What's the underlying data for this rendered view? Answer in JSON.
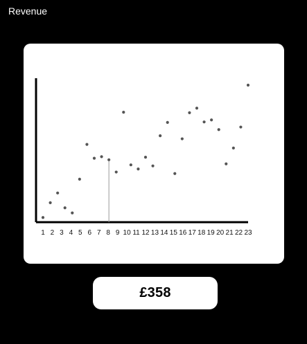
{
  "header": {
    "title": "Revenue"
  },
  "summary": {
    "value_text": "£358"
  },
  "chart_data": {
    "type": "scatter",
    "title": "",
    "xlabel": "",
    "ylabel": "",
    "x": [
      1,
      1.5,
      2,
      2.5,
      3,
      3.5,
      4,
      4.5,
      5,
      5.5,
      6,
      6.5,
      7,
      7.5,
      8,
      8.5,
      9,
      9.5,
      10,
      10.5,
      11,
      11.5,
      12,
      12.5,
      13,
      13.5,
      14,
      14.5,
      15
    ],
    "y": [
      1,
      30,
      49,
      20,
      10,
      76,
      144,
      117,
      120,
      114,
      90,
      207,
      104,
      96,
      119,
      102,
      161,
      187,
      87,
      155,
      206,
      215,
      188,
      192,
      173,
      106,
      137,
      178,
      260
    ],
    "y_scale_visible": false,
    "xlim": [
      1,
      15
    ],
    "tick_labels": [
      "1",
      "2",
      "3",
      "4",
      "5",
      "6",
      "7",
      "8",
      "9",
      "10",
      "11",
      "12",
      "13",
      "14",
      "15",
      "16",
      "17",
      "18",
      "19",
      "20",
      "21",
      "22",
      "23"
    ],
    "highlight": {
      "x": 5.5,
      "y": 114
    },
    "grid": false,
    "legend": "none",
    "colors": {
      "point": "#555555",
      "axis": "#000000",
      "highlight_line": "#999999"
    }
  }
}
